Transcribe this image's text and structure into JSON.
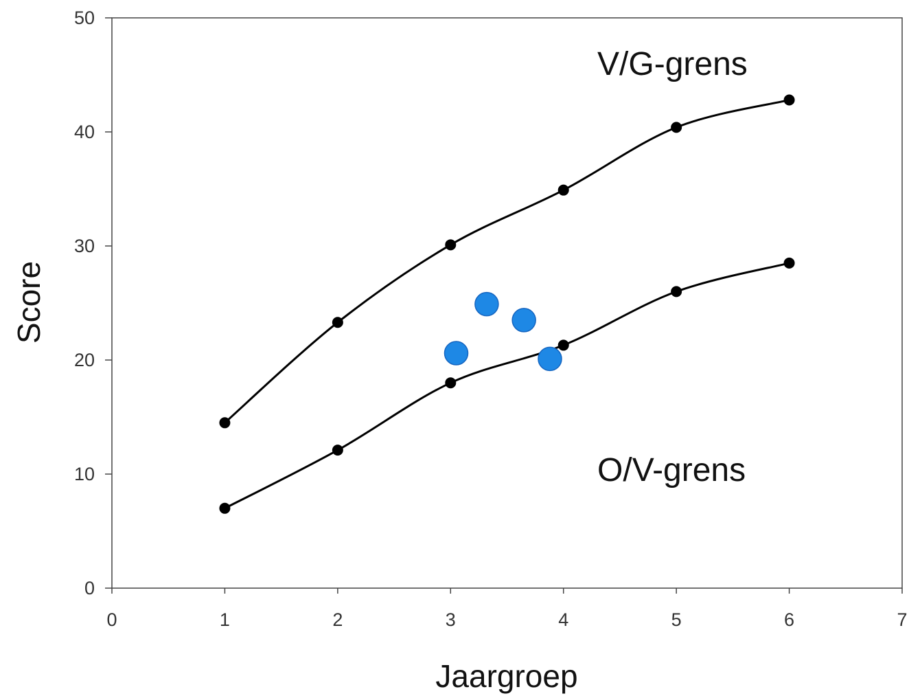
{
  "chart_data": {
    "type": "scatter",
    "title": "",
    "xlabel": "Jaargroep",
    "ylabel": "Score",
    "xlim": [
      0,
      7
    ],
    "ylim": [
      0,
      50
    ],
    "xticks": [
      "0",
      "1",
      "2",
      "3",
      "4",
      "5",
      "6",
      "7"
    ],
    "yticks": [
      "0",
      "10",
      "20",
      "30",
      "40",
      "50"
    ],
    "grid": false,
    "series": [
      {
        "style": "points-with-curve",
        "color": "#000000",
        "x": [
          1,
          2,
          3,
          4,
          5,
          6
        ],
        "y": [
          14.5,
          23.3,
          30.1,
          34.9,
          40.4,
          42.8
        ]
      },
      {
        "style": "points-with-curve",
        "color": "#000000",
        "x": [
          1,
          2,
          3,
          4,
          5,
          6
        ],
        "y": [
          7.0,
          12.1,
          18.0,
          21.3,
          26.0,
          28.5
        ]
      },
      {
        "style": "highlight-points",
        "color": "#1E88E5",
        "x": [
          3.05,
          3.32,
          3.65,
          3.88
        ],
        "y": [
          20.6,
          24.9,
          23.5,
          20.1
        ]
      }
    ],
    "annotations": [
      {
        "text": "V/G-grens",
        "x": 4.3,
        "y": 45.0
      },
      {
        "text": "O/V-grens",
        "x": 4.3,
        "y": 9.4
      }
    ]
  }
}
